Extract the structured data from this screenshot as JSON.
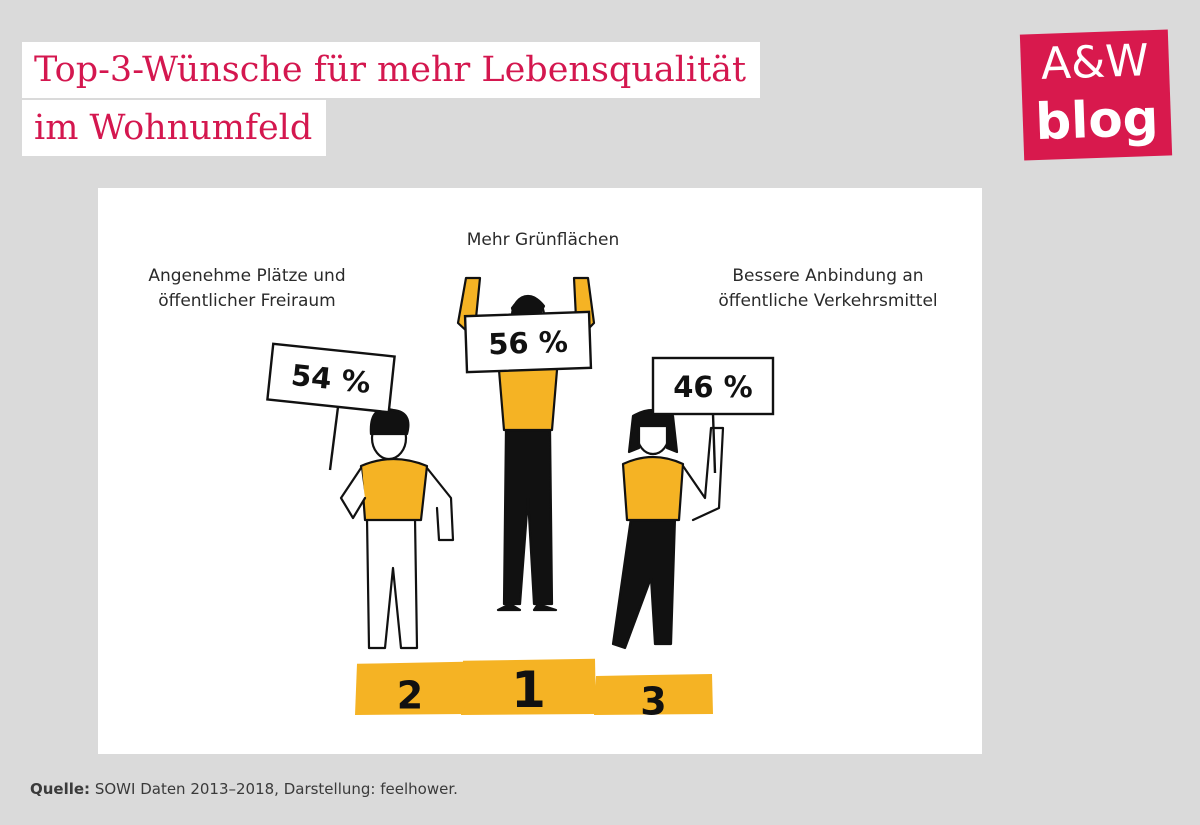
{
  "title_lines": [
    "Top-3-Wünsche für mehr Lebensqualität",
    "im Wohnumfeld"
  ],
  "logo": {
    "line1": "A&W",
    "line2": "blog"
  },
  "colors": {
    "accent": "#d4174f",
    "podium": "#f5b324",
    "ink": "#111111"
  },
  "chart_data": {
    "type": "bar",
    "categories": [
      "Mehr Grünflächen",
      "Angenehme Plätze und\nöffentlicher Freiraum",
      "Bessere Anbindung an\nöffentliche Verkehrsmittel"
    ],
    "values": [
      56,
      54,
      46
    ],
    "value_labels": [
      "56 %",
      "54 %",
      "46 %"
    ],
    "ranks": [
      "1",
      "2",
      "3"
    ],
    "unit": "%"
  },
  "source": {
    "label": "Quelle:",
    "text": "SOWI Daten 2013–2018, Darstellung: feelhower."
  }
}
